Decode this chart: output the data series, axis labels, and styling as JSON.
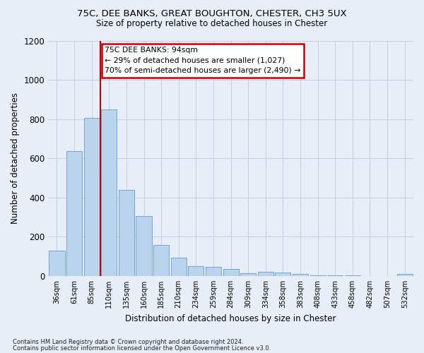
{
  "title1": "75C, DEE BANKS, GREAT BOUGHTON, CHESTER, CH3 5UX",
  "title2": "Size of property relative to detached houses in Chester",
  "xlabel": "Distribution of detached houses by size in Chester",
  "ylabel": "Number of detached properties",
  "categories": [
    "36sqm",
    "61sqm",
    "85sqm",
    "110sqm",
    "135sqm",
    "160sqm",
    "185sqm",
    "210sqm",
    "234sqm",
    "259sqm",
    "284sqm",
    "309sqm",
    "334sqm",
    "358sqm",
    "383sqm",
    "408sqm",
    "433sqm",
    "458sqm",
    "482sqm",
    "507sqm",
    "532sqm"
  ],
  "values": [
    130,
    635,
    805,
    850,
    440,
    305,
    158,
    92,
    50,
    48,
    35,
    15,
    20,
    18,
    10,
    5,
    5,
    5,
    0,
    0,
    10
  ],
  "bar_color": "#bad4ed",
  "bar_edge_color": "#6699cc",
  "vline_x": 2.5,
  "vline_color": "#cc0000",
  "annotation_text": "75C DEE BANKS: 94sqm\n← 29% of detached houses are smaller (1,027)\n70% of semi-detached houses are larger (2,490) →",
  "ylim": [
    0,
    1200
  ],
  "yticks": [
    0,
    200,
    400,
    600,
    800,
    1000,
    1200
  ],
  "footer1": "Contains HM Land Registry data © Crown copyright and database right 2024.",
  "footer2": "Contains public sector information licensed under the Open Government Licence v3.0.",
  "bg_color": "#e8eef8",
  "plot_bg_color": "#e8eef8"
}
